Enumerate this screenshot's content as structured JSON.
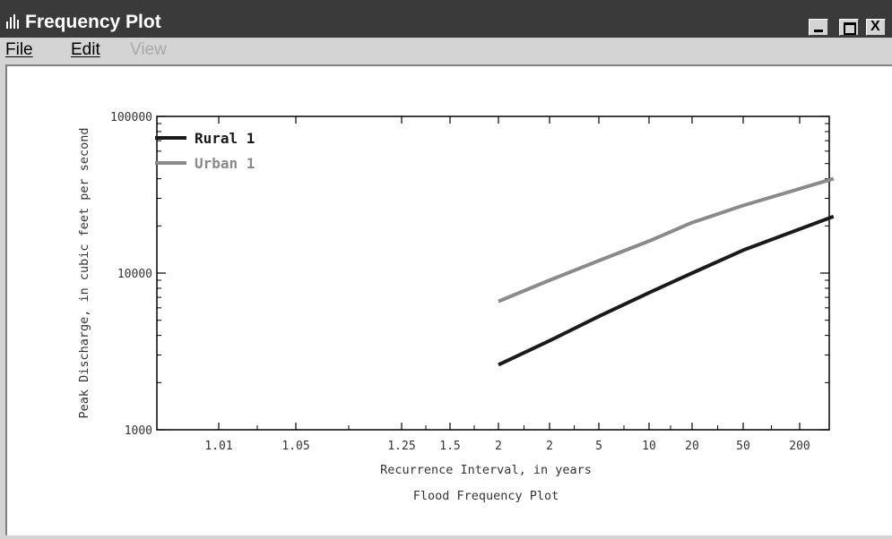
{
  "window": {
    "title": "Frequency Plot",
    "icon": "bar-chart-icon",
    "controls": [
      "minimize-icon",
      "maximize-icon",
      "close-icon"
    ],
    "close_label": "X"
  },
  "menu": [
    {
      "label": "File",
      "enabled": true
    },
    {
      "label": "Edit",
      "enabled": true
    },
    {
      "label": "View",
      "enabled": false
    }
  ],
  "chart_data": {
    "type": "line",
    "title": "Flood Frequency Plot",
    "xlabel": "Recurrence Interval, in years",
    "ylabel": "Peak Discharge, in cubic feet per second",
    "y_scale": "log",
    "ylim": [
      1000,
      100000
    ],
    "y_tick_labels": [
      "1000",
      "10000",
      "100000"
    ],
    "x_tick_labels": [
      "1.01",
      "1.05",
      "1.25",
      "1.5",
      "2",
      "2",
      "5",
      "10",
      "20",
      "50",
      "200"
    ],
    "legend_position": "top-left",
    "grid": false,
    "series": [
      {
        "name": "Rural 1",
        "color": "#1a1a1a",
        "x_index": [
          4.0,
          5.0,
          6.0,
          7.0,
          8.0,
          9.0,
          10.6
        ],
        "values": [
          2600,
          3700,
          5300,
          7500,
          10000,
          14000,
          23000
        ]
      },
      {
        "name": "Urban 1",
        "color": "#8a8a8a",
        "x_index": [
          4.0,
          5.0,
          6.0,
          7.0,
          8.0,
          9.0,
          10.6
        ],
        "values": [
          6600,
          9000,
          12000,
          16000,
          21000,
          27000,
          40000
        ]
      }
    ]
  }
}
